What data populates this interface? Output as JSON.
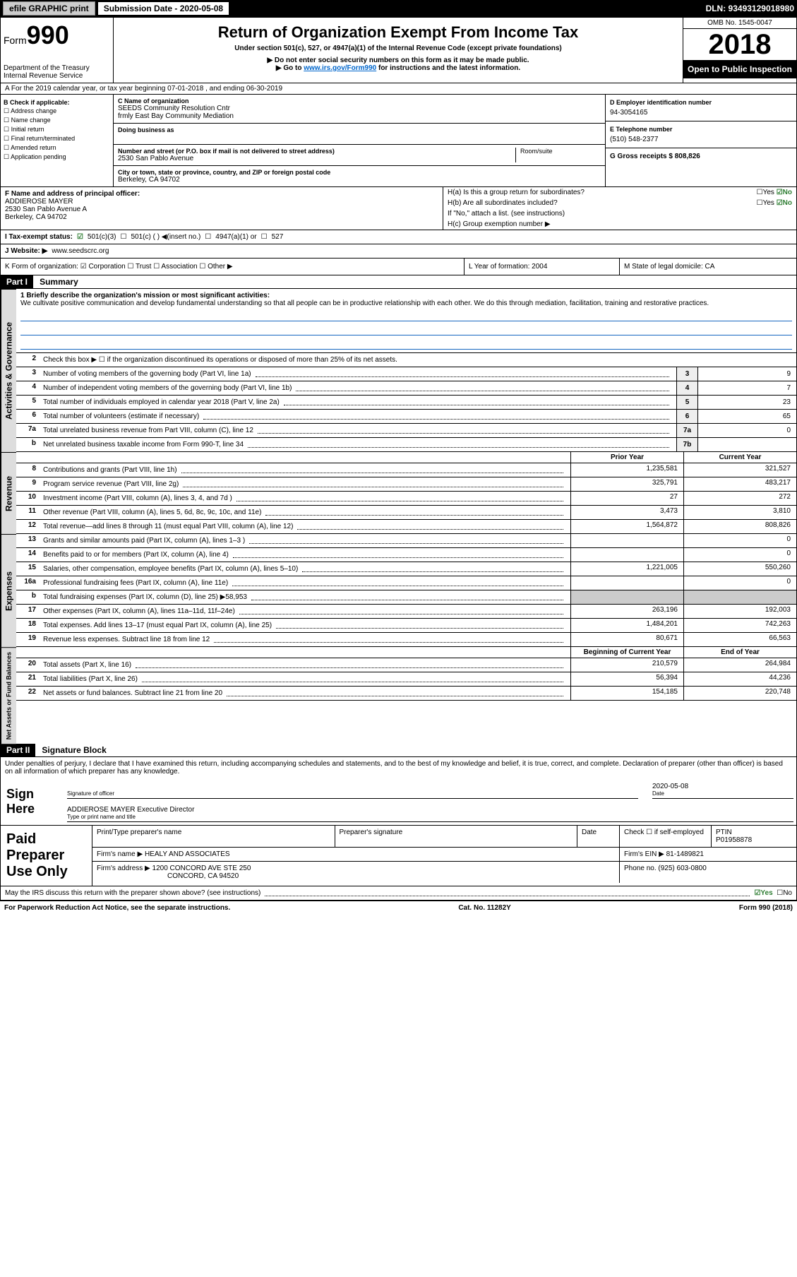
{
  "top_bar": {
    "efile": "efile GRAPHIC print",
    "submission_label": "Submission Date - 2020-05-08",
    "dln": "DLN: 93493129018980"
  },
  "header": {
    "form_label": "Form",
    "form_number": "990",
    "dept": "Department of the Treasury",
    "irs": "Internal Revenue Service",
    "title": "Return of Organization Exempt From Income Tax",
    "subtitle": "Under section 501(c), 527, or 4947(a)(1) of the Internal Revenue Code (except private foundations)",
    "warn1": "▶ Do not enter social security numbers on this form as it may be made public.",
    "warn2_pre": "▶ Go to ",
    "warn2_link": "www.irs.gov/Form990",
    "warn2_post": " for instructions and the latest information.",
    "omb": "OMB No. 1545-0047",
    "year": "2018",
    "open": "Open to Public Inspection"
  },
  "row_a": "A For the 2019 calendar year, or tax year beginning 07-01-2018   , and ending 06-30-2019",
  "col_b": {
    "header": "B Check if applicable:",
    "items": [
      "Address change",
      "Name change",
      "Initial return",
      "Final return/terminated",
      "Amended return",
      "Application pending"
    ]
  },
  "col_c": {
    "name_lbl": "C Name of organization",
    "name1": "SEEDS Community Resolution Cntr",
    "name2": "frmly East Bay Community Mediation",
    "dba_lbl": "Doing business as",
    "street_lbl": "Number and street (or P.O. box if mail is not delivered to street address)",
    "room_lbl": "Room/suite",
    "street": "2530 San Pablo Avenue",
    "city_lbl": "City or town, state or province, country, and ZIP or foreign postal code",
    "city": "Berkeley, CA  94702"
  },
  "col_d": {
    "ein_lbl": "D Employer identification number",
    "ein": "94-3054165",
    "phone_lbl": "E Telephone number",
    "phone": "(510) 548-2377",
    "gross_lbl": "G Gross receipts $ 808,826"
  },
  "sec_f": {
    "lbl": "F Name and address of principal officer:",
    "name": "ADDIEROSE MAYER",
    "addr1": "2530 San Pablo Avenue A",
    "addr2": "Berkeley, CA  94702",
    "ha": "H(a)  Is this a group return for subordinates?",
    "hb": "H(b)  Are all subordinates included?",
    "hb_note": "If \"No,\" attach a list. (see instructions)",
    "hc": "H(c)  Group exemption number ▶",
    "yes": "☐Yes",
    "no_checked": "☑No"
  },
  "row_i": {
    "lbl": "I  Tax-exempt status:",
    "opt1": "501(c)(3)",
    "opt2": "501(c) (  ) ◀(insert no.)",
    "opt3": "4947(a)(1) or",
    "opt4": "527"
  },
  "row_j": {
    "lbl": "J  Website: ▶",
    "val": "www.seedscrc.org"
  },
  "row_k": {
    "k1": "K Form of organization:  ☑ Corporation  ☐ Trust  ☐ Association  ☐ Other ▶",
    "k2": "L Year of formation: 2004",
    "k3": "M State of legal domicile: CA"
  },
  "part1": {
    "label": "Part I",
    "title": "Summary",
    "side1": "Activities & Governance",
    "side2": "Revenue",
    "side3": "Expenses",
    "side4": "Net Assets or Fund Balances",
    "line1_lbl": "1  Briefly describe the organization's mission or most significant activities:",
    "mission": "We cultivate positive communication and develop fundamental understanding so that all people can be in productive relationship with each other. We do this through mediation, facilitation, training and restorative practices.",
    "line2": "Check this box ▶ ☐ if the organization discontinued its operations or disposed of more than 25% of its net assets.",
    "lines_gov": [
      {
        "n": "3",
        "d": "Number of voting members of the governing body (Part VI, line 1a)",
        "bn": "3",
        "v": "9"
      },
      {
        "n": "4",
        "d": "Number of independent voting members of the governing body (Part VI, line 1b)",
        "bn": "4",
        "v": "7"
      },
      {
        "n": "5",
        "d": "Total number of individuals employed in calendar year 2018 (Part V, line 2a)",
        "bn": "5",
        "v": "23"
      },
      {
        "n": "6",
        "d": "Total number of volunteers (estimate if necessary)",
        "bn": "6",
        "v": "65"
      },
      {
        "n": "7a",
        "d": "Total unrelated business revenue from Part VIII, column (C), line 12",
        "bn": "7a",
        "v": "0"
      },
      {
        "n": "b",
        "d": "Net unrelated business taxable income from Form 990-T, line 34",
        "bn": "7b",
        "v": ""
      }
    ],
    "py_hdr_prior": "Prior Year",
    "py_hdr_current": "Current Year",
    "lines_rev": [
      {
        "n": "8",
        "d": "Contributions and grants (Part VIII, line 1h)",
        "p": "1,235,581",
        "c": "321,527"
      },
      {
        "n": "9",
        "d": "Program service revenue (Part VIII, line 2g)",
        "p": "325,791",
        "c": "483,217"
      },
      {
        "n": "10",
        "d": "Investment income (Part VIII, column (A), lines 3, 4, and 7d )",
        "p": "27",
        "c": "272"
      },
      {
        "n": "11",
        "d": "Other revenue (Part VIII, column (A), lines 5, 6d, 8c, 9c, 10c, and 11e)",
        "p": "3,473",
        "c": "3,810"
      },
      {
        "n": "12",
        "d": "Total revenue—add lines 8 through 11 (must equal Part VIII, column (A), line 12)",
        "p": "1,564,872",
        "c": "808,826"
      }
    ],
    "lines_exp": [
      {
        "n": "13",
        "d": "Grants and similar amounts paid (Part IX, column (A), lines 1–3 )",
        "p": "",
        "c": "0"
      },
      {
        "n": "14",
        "d": "Benefits paid to or for members (Part IX, column (A), line 4)",
        "p": "",
        "c": "0"
      },
      {
        "n": "15",
        "d": "Salaries, other compensation, employee benefits (Part IX, column (A), lines 5–10)",
        "p": "1,221,005",
        "c": "550,260"
      },
      {
        "n": "16a",
        "d": "Professional fundraising fees (Part IX, column (A), line 11e)",
        "p": "",
        "c": "0"
      },
      {
        "n": "b",
        "d": "Total fundraising expenses (Part IX, column (D), line 25) ▶58,953",
        "p": "shade",
        "c": "shade"
      },
      {
        "n": "17",
        "d": "Other expenses (Part IX, column (A), lines 11a–11d, 11f–24e)",
        "p": "263,196",
        "c": "192,003"
      },
      {
        "n": "18",
        "d": "Total expenses. Add lines 13–17 (must equal Part IX, column (A), line 25)",
        "p": "1,484,201",
        "c": "742,263"
      },
      {
        "n": "19",
        "d": "Revenue less expenses. Subtract line 18 from line 12",
        "p": "80,671",
        "c": "66,563"
      }
    ],
    "na_hdr_begin": "Beginning of Current Year",
    "na_hdr_end": "End of Year",
    "lines_na": [
      {
        "n": "20",
        "d": "Total assets (Part X, line 16)",
        "p": "210,579",
        "c": "264,984"
      },
      {
        "n": "21",
        "d": "Total liabilities (Part X, line 26)",
        "p": "56,394",
        "c": "44,236"
      },
      {
        "n": "22",
        "d": "Net assets or fund balances. Subtract line 21 from line 20",
        "p": "154,185",
        "c": "220,748"
      }
    ]
  },
  "part2": {
    "label": "Part II",
    "title": "Signature Block",
    "penalties": "Under penalties of perjury, I declare that I have examined this return, including accompanying schedules and statements, and to the best of my knowledge and belief, it is true, correct, and complete. Declaration of preparer (other than officer) is based on all information of which preparer has any knowledge.",
    "sign_here": "Sign Here",
    "sig_officer_lbl": "Signature of officer",
    "sig_date": "2020-05-08",
    "sig_date_lbl": "Date",
    "sig_name": "ADDIEROSE MAYER  Executive Director",
    "sig_name_lbl": "Type or print name and title",
    "paid": "Paid Preparer Use Only",
    "prep_name_lbl": "Print/Type preparer's name",
    "prep_sig_lbl": "Preparer's signature",
    "prep_date_lbl": "Date",
    "prep_check": "Check ☐ if self-employed",
    "ptin_lbl": "PTIN",
    "ptin": "P01958878",
    "firm_name_lbl": "Firm's name   ▶",
    "firm_name": "HEALY AND ASSOCIATES",
    "firm_ein_lbl": "Firm's EIN ▶",
    "firm_ein": "81-1489821",
    "firm_addr_lbl": "Firm's address ▶",
    "firm_addr1": "1200 CONCORD AVE STE 250",
    "firm_addr2": "CONCORD, CA  94520",
    "firm_phone_lbl": "Phone no.",
    "firm_phone": "(925) 603-0800",
    "discuss": "May the IRS discuss this return with the preparer shown above? (see instructions)",
    "discuss_yes": "☑Yes",
    "discuss_no": "☐No"
  },
  "footer": {
    "left": "For Paperwork Reduction Act Notice, see the separate instructions.",
    "center": "Cat. No. 11282Y",
    "right": "Form 990 (2018)"
  }
}
